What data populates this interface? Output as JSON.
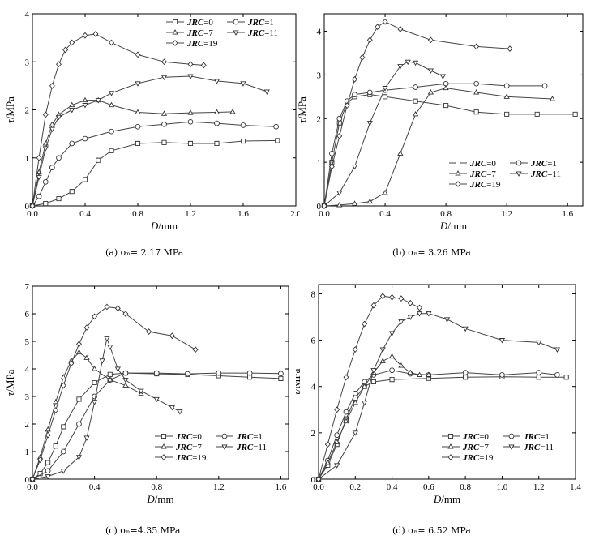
{
  "chart_data": [
    {
      "type": "line",
      "caption": "(a) σₙ= 2.17 MPa",
      "xlabel": "D/mm",
      "ylabel": "τ/MPa",
      "xlim": [
        0,
        2.0
      ],
      "ylim": [
        0,
        4
      ],
      "xticks": [
        "0.0",
        "0.4",
        "0.8",
        "1.2",
        "1.6",
        "2.0"
      ],
      "yticks": [
        "0",
        "1",
        "2",
        "3",
        "4"
      ],
      "legend_position": "top-right",
      "legend_columns": 2,
      "series": [
        {
          "name": "JRC=0",
          "marker": "square",
          "x": [
            0,
            0.1,
            0.2,
            0.3,
            0.4,
            0.5,
            0.6,
            0.8,
            1.0,
            1.2,
            1.4,
            1.6,
            1.86
          ],
          "y": [
            0,
            0.05,
            0.15,
            0.3,
            0.55,
            0.95,
            1.15,
            1.3,
            1.32,
            1.3,
            1.3,
            1.35,
            1.36
          ]
        },
        {
          "name": "JRC=1",
          "marker": "circle",
          "x": [
            0,
            0.05,
            0.1,
            0.15,
            0.2,
            0.3,
            0.4,
            0.6,
            0.8,
            1.0,
            1.2,
            1.4,
            1.6,
            1.85
          ],
          "y": [
            0,
            0.2,
            0.5,
            0.8,
            1.0,
            1.3,
            1.4,
            1.55,
            1.65,
            1.7,
            1.75,
            1.72,
            1.68,
            1.65
          ]
        },
        {
          "name": "JRC=7",
          "marker": "triangle-up",
          "x": [
            0,
            0.05,
            0.1,
            0.15,
            0.2,
            0.3,
            0.4,
            0.5,
            0.6,
            0.8,
            1.0,
            1.2,
            1.4,
            1.52
          ],
          "y": [
            0,
            0.7,
            1.3,
            1.7,
            1.9,
            2.1,
            2.2,
            2.2,
            2.1,
            1.95,
            1.92,
            1.94,
            1.95,
            1.96
          ]
        },
        {
          "name": "JRC=11",
          "marker": "triangle-down",
          "x": [
            0,
            0.05,
            0.1,
            0.15,
            0.2,
            0.3,
            0.4,
            0.5,
            0.6,
            0.8,
            1.0,
            1.2,
            1.4,
            1.6,
            1.78
          ],
          "y": [
            0,
            0.6,
            1.2,
            1.6,
            1.85,
            2.0,
            2.1,
            2.2,
            2.35,
            2.55,
            2.68,
            2.7,
            2.6,
            2.55,
            2.38
          ]
        },
        {
          "name": "JRC=19",
          "marker": "diamond",
          "x": [
            0,
            0.05,
            0.1,
            0.15,
            0.2,
            0.25,
            0.3,
            0.4,
            0.48,
            0.6,
            0.8,
            1.0,
            1.2,
            1.3
          ],
          "y": [
            0,
            1.0,
            1.9,
            2.5,
            2.95,
            3.25,
            3.4,
            3.55,
            3.58,
            3.4,
            3.15,
            3.0,
            2.95,
            2.93
          ]
        }
      ]
    },
    {
      "type": "line",
      "caption": "(b) σₙ= 3.26 MPa",
      "xlabel": "D/mm",
      "ylabel": "τ/MPa",
      "xlim": [
        0,
        1.7
      ],
      "ylim": [
        0,
        4.4
      ],
      "xticks": [
        "0.0",
        "0.4",
        "0.8",
        "1.2",
        "1.6"
      ],
      "xtick_values": [
        0,
        0.4,
        0.8,
        1.2,
        1.6
      ],
      "yticks": [
        "0",
        "1",
        "2",
        "3",
        "4"
      ],
      "legend_position": "bottom-right",
      "legend_columns": 2,
      "series": [
        {
          "name": "JRC=0",
          "marker": "square",
          "x": [
            0,
            0.05,
            0.1,
            0.15,
            0.2,
            0.3,
            0.4,
            0.6,
            0.8,
            1.0,
            1.2,
            1.4,
            1.65
          ],
          "y": [
            0,
            1.0,
            1.9,
            2.35,
            2.5,
            2.55,
            2.5,
            2.4,
            2.3,
            2.15,
            2.1,
            2.1,
            2.1
          ]
        },
        {
          "name": "JRC=1",
          "marker": "circle",
          "x": [
            0,
            0.05,
            0.1,
            0.15,
            0.2,
            0.3,
            0.4,
            0.6,
            0.8,
            1.0,
            1.2,
            1.45
          ],
          "y": [
            0,
            1.2,
            2.0,
            2.4,
            2.55,
            2.6,
            2.65,
            2.72,
            2.8,
            2.8,
            2.75,
            2.75
          ]
        },
        {
          "name": "JRC=7",
          "marker": "triangle-up",
          "x": [
            0,
            0.1,
            0.2,
            0.3,
            0.4,
            0.5,
            0.6,
            0.7,
            0.8,
            1.0,
            1.2,
            1.5
          ],
          "y": [
            0,
            0.02,
            0.05,
            0.1,
            0.3,
            1.2,
            2.1,
            2.6,
            2.7,
            2.6,
            2.5,
            2.45
          ]
        },
        {
          "name": "JRC=11",
          "marker": "triangle-down",
          "x": [
            0,
            0.1,
            0.2,
            0.3,
            0.4,
            0.5,
            0.55,
            0.6,
            0.7,
            0.78
          ],
          "y": [
            0,
            0.3,
            0.9,
            1.9,
            2.7,
            3.2,
            3.3,
            3.28,
            3.1,
            2.97
          ]
        },
        {
          "name": "JRC=19",
          "marker": "diamond",
          "x": [
            0,
            0.05,
            0.1,
            0.15,
            0.2,
            0.25,
            0.3,
            0.35,
            0.4,
            0.5,
            0.7,
            1.0,
            1.22
          ],
          "y": [
            0,
            0.9,
            1.6,
            2.3,
            2.9,
            3.4,
            3.8,
            4.1,
            4.22,
            4.05,
            3.8,
            3.65,
            3.6
          ]
        }
      ]
    },
    {
      "type": "line",
      "caption": "(c) σₙ=4.35 MPa",
      "xlabel": "D/mm",
      "ylabel": "τ/MPa",
      "xlim": [
        0,
        1.65
      ],
      "ylim": [
        0,
        7
      ],
      "xticks": [
        "0.0",
        "0.4",
        "0.8",
        "1.2",
        "1.6"
      ],
      "xtick_values": [
        0,
        0.4,
        0.8,
        1.2,
        1.6
      ],
      "yticks": [
        "0",
        "1",
        "2",
        "3",
        "4",
        "5",
        "6",
        "7"
      ],
      "legend_position": "bottom-right",
      "legend_columns": 2,
      "series": [
        {
          "name": "JRC=0",
          "marker": "square",
          "x": [
            0,
            0.05,
            0.1,
            0.15,
            0.2,
            0.3,
            0.4,
            0.5,
            0.6,
            0.8,
            1.0,
            1.2,
            1.4,
            1.6
          ],
          "y": [
            0,
            0.2,
            0.6,
            1.2,
            1.9,
            2.9,
            3.5,
            3.8,
            3.85,
            3.82,
            3.8,
            3.75,
            3.7,
            3.65
          ]
        },
        {
          "name": "JRC=1",
          "marker": "circle",
          "x": [
            0,
            0.1,
            0.2,
            0.3,
            0.4,
            0.5,
            0.6,
            0.8,
            1.0,
            1.2,
            1.4,
            1.6
          ],
          "y": [
            0,
            0.3,
            1.0,
            2.0,
            3.0,
            3.6,
            3.85,
            3.85,
            3.82,
            3.85,
            3.85,
            3.83
          ]
        },
        {
          "name": "JRC=7",
          "marker": "triangle-up",
          "x": [
            0,
            0.05,
            0.1,
            0.15,
            0.2,
            0.25,
            0.3,
            0.35,
            0.4,
            0.5,
            0.6,
            0.7
          ],
          "y": [
            0,
            0.8,
            1.8,
            2.8,
            3.7,
            4.3,
            4.6,
            4.4,
            4.0,
            3.6,
            3.4,
            3.1
          ]
        },
        {
          "name": "JRC=11",
          "marker": "triangle-down",
          "x": [
            0,
            0.1,
            0.2,
            0.3,
            0.35,
            0.4,
            0.45,
            0.48,
            0.5,
            0.55,
            0.6,
            0.7,
            0.8,
            0.9,
            0.95
          ],
          "y": [
            0,
            0.1,
            0.3,
            0.8,
            1.5,
            2.8,
            4.3,
            5.1,
            4.8,
            4.0,
            3.6,
            3.2,
            2.9,
            2.6,
            2.45
          ]
        },
        {
          "name": "JRC=19",
          "marker": "diamond",
          "x": [
            0,
            0.05,
            0.1,
            0.15,
            0.2,
            0.25,
            0.3,
            0.35,
            0.4,
            0.48,
            0.55,
            0.6,
            0.75,
            0.9,
            1.05
          ],
          "y": [
            0,
            0.7,
            1.6,
            2.5,
            3.4,
            4.2,
            4.9,
            5.5,
            5.9,
            6.25,
            6.2,
            6.0,
            5.35,
            5.2,
            4.7
          ]
        }
      ]
    },
    {
      "type": "line",
      "caption": "(d) σₙ= 6.52 MPa",
      "xlabel": "D/mm",
      "ylabel": "τ/MPa",
      "xlim": [
        0,
        1.4
      ],
      "ylim": [
        0,
        8.4
      ],
      "xticks": [
        "0.0",
        "0.2",
        "0.4",
        "0.6",
        "0.8",
        "1.0",
        "1.2",
        "1.4"
      ],
      "xtick_values": [
        0,
        0.2,
        0.4,
        0.6,
        0.8,
        1.0,
        1.2,
        1.4
      ],
      "yticks": [
        "0",
        "2",
        "4",
        "6",
        "8"
      ],
      "ytick_values": [
        0,
        2,
        4,
        6,
        8
      ],
      "legend_position": "bottom-right",
      "legend_columns": 2,
      "series": [
        {
          "name": "JRC=0",
          "marker": "square",
          "x": [
            0,
            0.05,
            0.1,
            0.15,
            0.2,
            0.25,
            0.3,
            0.4,
            0.6,
            0.8,
            1.0,
            1.2,
            1.35
          ],
          "y": [
            0,
            0.6,
            1.5,
            2.6,
            3.5,
            4.0,
            4.2,
            4.3,
            4.35,
            4.4,
            4.42,
            4.4,
            4.4
          ]
        },
        {
          "name": "JRC=1",
          "marker": "circle",
          "x": [
            0,
            0.05,
            0.1,
            0.15,
            0.2,
            0.25,
            0.3,
            0.4,
            0.5,
            0.6,
            0.8,
            1.0,
            1.2,
            1.3
          ],
          "y": [
            0,
            0.8,
            1.9,
            2.9,
            3.7,
            4.2,
            4.5,
            4.7,
            4.55,
            4.5,
            4.6,
            4.5,
            4.6,
            4.5
          ]
        },
        {
          "name": "JRC=7",
          "marker": "triangle-up",
          "x": [
            0,
            0.05,
            0.1,
            0.15,
            0.2,
            0.25,
            0.3,
            0.35,
            0.4,
            0.45,
            0.5,
            0.55,
            0.6
          ],
          "y": [
            0,
            0.7,
            1.6,
            2.5,
            3.3,
            4.0,
            4.6,
            5.1,
            5.3,
            4.9,
            4.6,
            4.5,
            4.5
          ]
        },
        {
          "name": "JRC=11",
          "marker": "triangle-down",
          "x": [
            0,
            0.1,
            0.2,
            0.25,
            0.3,
            0.35,
            0.4,
            0.45,
            0.5,
            0.55,
            0.6,
            0.7,
            0.8,
            1.0,
            1.2,
            1.3
          ],
          "y": [
            0,
            0.6,
            2.0,
            3.3,
            4.7,
            5.6,
            6.3,
            6.8,
            7.0,
            7.15,
            7.15,
            6.9,
            6.5,
            6.0,
            5.9,
            5.6
          ]
        },
        {
          "name": "JRC=19",
          "marker": "diamond",
          "x": [
            0,
            0.05,
            0.1,
            0.15,
            0.2,
            0.25,
            0.3,
            0.35,
            0.4,
            0.45,
            0.5,
            0.55
          ],
          "y": [
            0,
            1.5,
            3.0,
            4.4,
            5.6,
            6.7,
            7.5,
            7.9,
            7.85,
            7.8,
            7.6,
            7.4
          ]
        }
      ]
    }
  ]
}
